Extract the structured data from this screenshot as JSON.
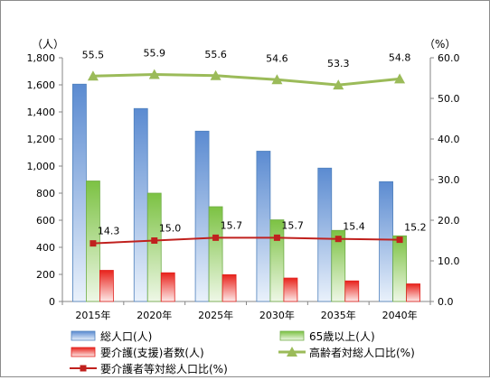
{
  "chart_data": {
    "type": "bar",
    "categories": [
      "2015年",
      "2020年",
      "2025年",
      "2030年",
      "2035年",
      "2040年"
    ],
    "y_left": {
      "unit_label": "（人）",
      "min": 0,
      "max": 1800,
      "step": 200,
      "tick_labels": [
        "0",
        "200",
        "400",
        "600",
        "800",
        "1,000",
        "1,200",
        "1,400",
        "1,600",
        "1,800"
      ]
    },
    "y_right": {
      "unit_label": "（%）",
      "min": 0,
      "max": 60,
      "step": 10,
      "tick_labels": [
        "0.0",
        "10.0",
        "20.0",
        "30.0",
        "40.0",
        "50.0",
        "60.0"
      ]
    },
    "grid": false,
    "legend_position": "bottom",
    "bar_series": [
      {
        "name": "総人口(人)",
        "axis": "left",
        "color": "#4f81bd",
        "values": [
          1605,
          1425,
          1258,
          1110,
          985,
          885
        ]
      },
      {
        "name": "65歳以上(人)",
        "axis": "left",
        "color": "#70ad47",
        "values": [
          890,
          800,
          700,
          603,
          525,
          485
        ]
      },
      {
        "name": "要介護(支援)者数(人)",
        "axis": "left",
        "color": "#e2201c",
        "values": [
          230,
          212,
          198,
          173,
          152,
          130
        ]
      }
    ],
    "line_series": [
      {
        "name": "高齢者対総人口比(%)",
        "axis": "right",
        "color": "#9bbb59",
        "marker": "triangle",
        "values": [
          55.5,
          55.9,
          55.6,
          54.6,
          53.3,
          54.8
        ],
        "labels": [
          "55.5",
          "55.9",
          "55.6",
          "54.6",
          "53.3",
          "54.8"
        ]
      },
      {
        "name": "要介護者等対総人口比(%)",
        "axis": "right",
        "color": "#c0211e",
        "marker": "square",
        "values": [
          14.3,
          15.0,
          15.7,
          15.7,
          15.4,
          15.2
        ],
        "labels": [
          "14.3",
          "15.0",
          "15.7",
          "15.7",
          "15.4",
          "15.2"
        ]
      }
    ]
  }
}
